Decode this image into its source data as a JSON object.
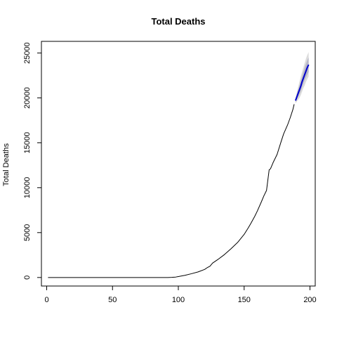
{
  "chart_data": {
    "type": "line",
    "title": "Total Deaths",
    "xlabel": "",
    "ylabel": "Total Deaths",
    "xlim": [
      -4,
      204
    ],
    "ylim": [
      -950,
      26300
    ],
    "x_ticks": [
      0,
      50,
      100,
      150,
      200
    ],
    "y_ticks": [
      0,
      5000,
      10000,
      15000,
      20000,
      25000
    ],
    "grid": false,
    "legend": "none",
    "colors": {
      "history": "#000000",
      "forecast": "#0000cc",
      "band_outer": "#dcdcdc",
      "band_inner": "#b8b8c8"
    },
    "series": [
      {
        "role": "history",
        "x": [
          1,
          20,
          40,
          60,
          80,
          92,
          95,
          98,
          100,
          105,
          110,
          115,
          120,
          122,
          124,
          126,
          130,
          135,
          140,
          145,
          150,
          153,
          155,
          158,
          160,
          163,
          165,
          167,
          169,
          170,
          172,
          175,
          178,
          180,
          183,
          185,
          187,
          188
        ],
        "y": [
          0,
          0,
          0,
          0,
          0,
          0,
          20,
          50,
          100,
          240,
          420,
          620,
          900,
          1100,
          1250,
          1600,
          2000,
          2550,
          3200,
          3900,
          4800,
          5500,
          6000,
          6800,
          7400,
          8400,
          9100,
          9700,
          12000,
          12100,
          12800,
          13700,
          15100,
          16000,
          17000,
          17800,
          18700,
          19300
        ]
      },
      {
        "role": "forecast",
        "x": [
          189,
          190,
          191,
          192,
          193,
          194,
          195,
          196,
          197,
          198,
          199
        ],
        "y": [
          19700,
          20100,
          20500,
          20900,
          21300,
          21800,
          22200,
          22600,
          23000,
          23400,
          23700
        ],
        "upper80": [
          19900,
          20400,
          20900,
          21400,
          21900,
          22400,
          22900,
          23400,
          23800,
          24200,
          24500
        ],
        "lower80": [
          19500,
          19800,
          20100,
          20400,
          20700,
          21200,
          21600,
          22000,
          22300,
          22600,
          22900
        ],
        "upper95": [
          20000,
          20600,
          21200,
          21800,
          22400,
          22900,
          23400,
          23900,
          24400,
          24800,
          25100
        ],
        "lower95": [
          19400,
          19600,
          19800,
          20000,
          20300,
          20700,
          21100,
          21400,
          21800,
          22100,
          22400
        ]
      }
    ]
  }
}
